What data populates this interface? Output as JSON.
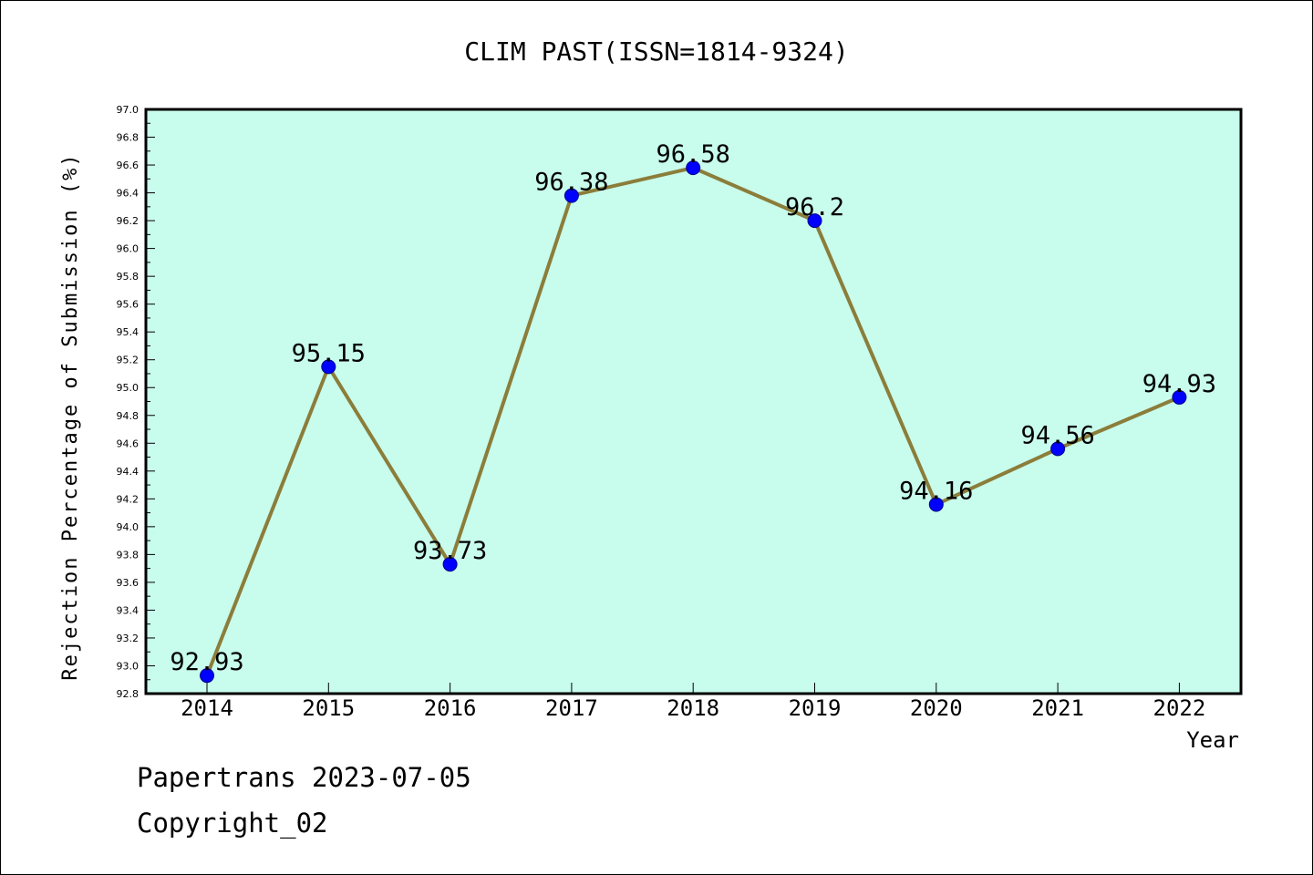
{
  "chart_data": {
    "type": "line",
    "title": "CLIM PAST(ISSN=1814-9324)",
    "xlabel": "Year",
    "ylabel": "Rejection Percentage of Submission (%)",
    "categories": [
      "2014",
      "2015",
      "2016",
      "2017",
      "2018",
      "2019",
      "2020",
      "2021",
      "2022"
    ],
    "series": [
      {
        "values": [
          92.93,
          95.15,
          93.73,
          96.38,
          96.58,
          96.2,
          94.16,
          94.56,
          94.93
        ]
      }
    ],
    "data_labels": [
      "92.93",
      "95.15",
      "93.73",
      "96.38",
      "96.58",
      "96.2",
      "94.16",
      "94.56",
      "94.93"
    ],
    "ylim": [
      92.8,
      97.0
    ],
    "yticks": [
      "92.8",
      "93.0",
      "93.2",
      "93.4",
      "93.6",
      "93.8",
      "94.0",
      "94.2",
      "94.4",
      "94.6",
      "94.8",
      "95.0",
      "95.2",
      "95.4",
      "95.6",
      "95.8",
      "96.0",
      "96.2",
      "96.4",
      "96.6",
      "96.8",
      "97.0"
    ],
    "grid": false,
    "colors": {
      "plot_bg": "#c8fcec",
      "line": "#8b7d3a",
      "marker": "#0000ff"
    }
  },
  "footer": {
    "line1": "Papertrans 2023-07-05",
    "line2": "Copyright_02"
  }
}
